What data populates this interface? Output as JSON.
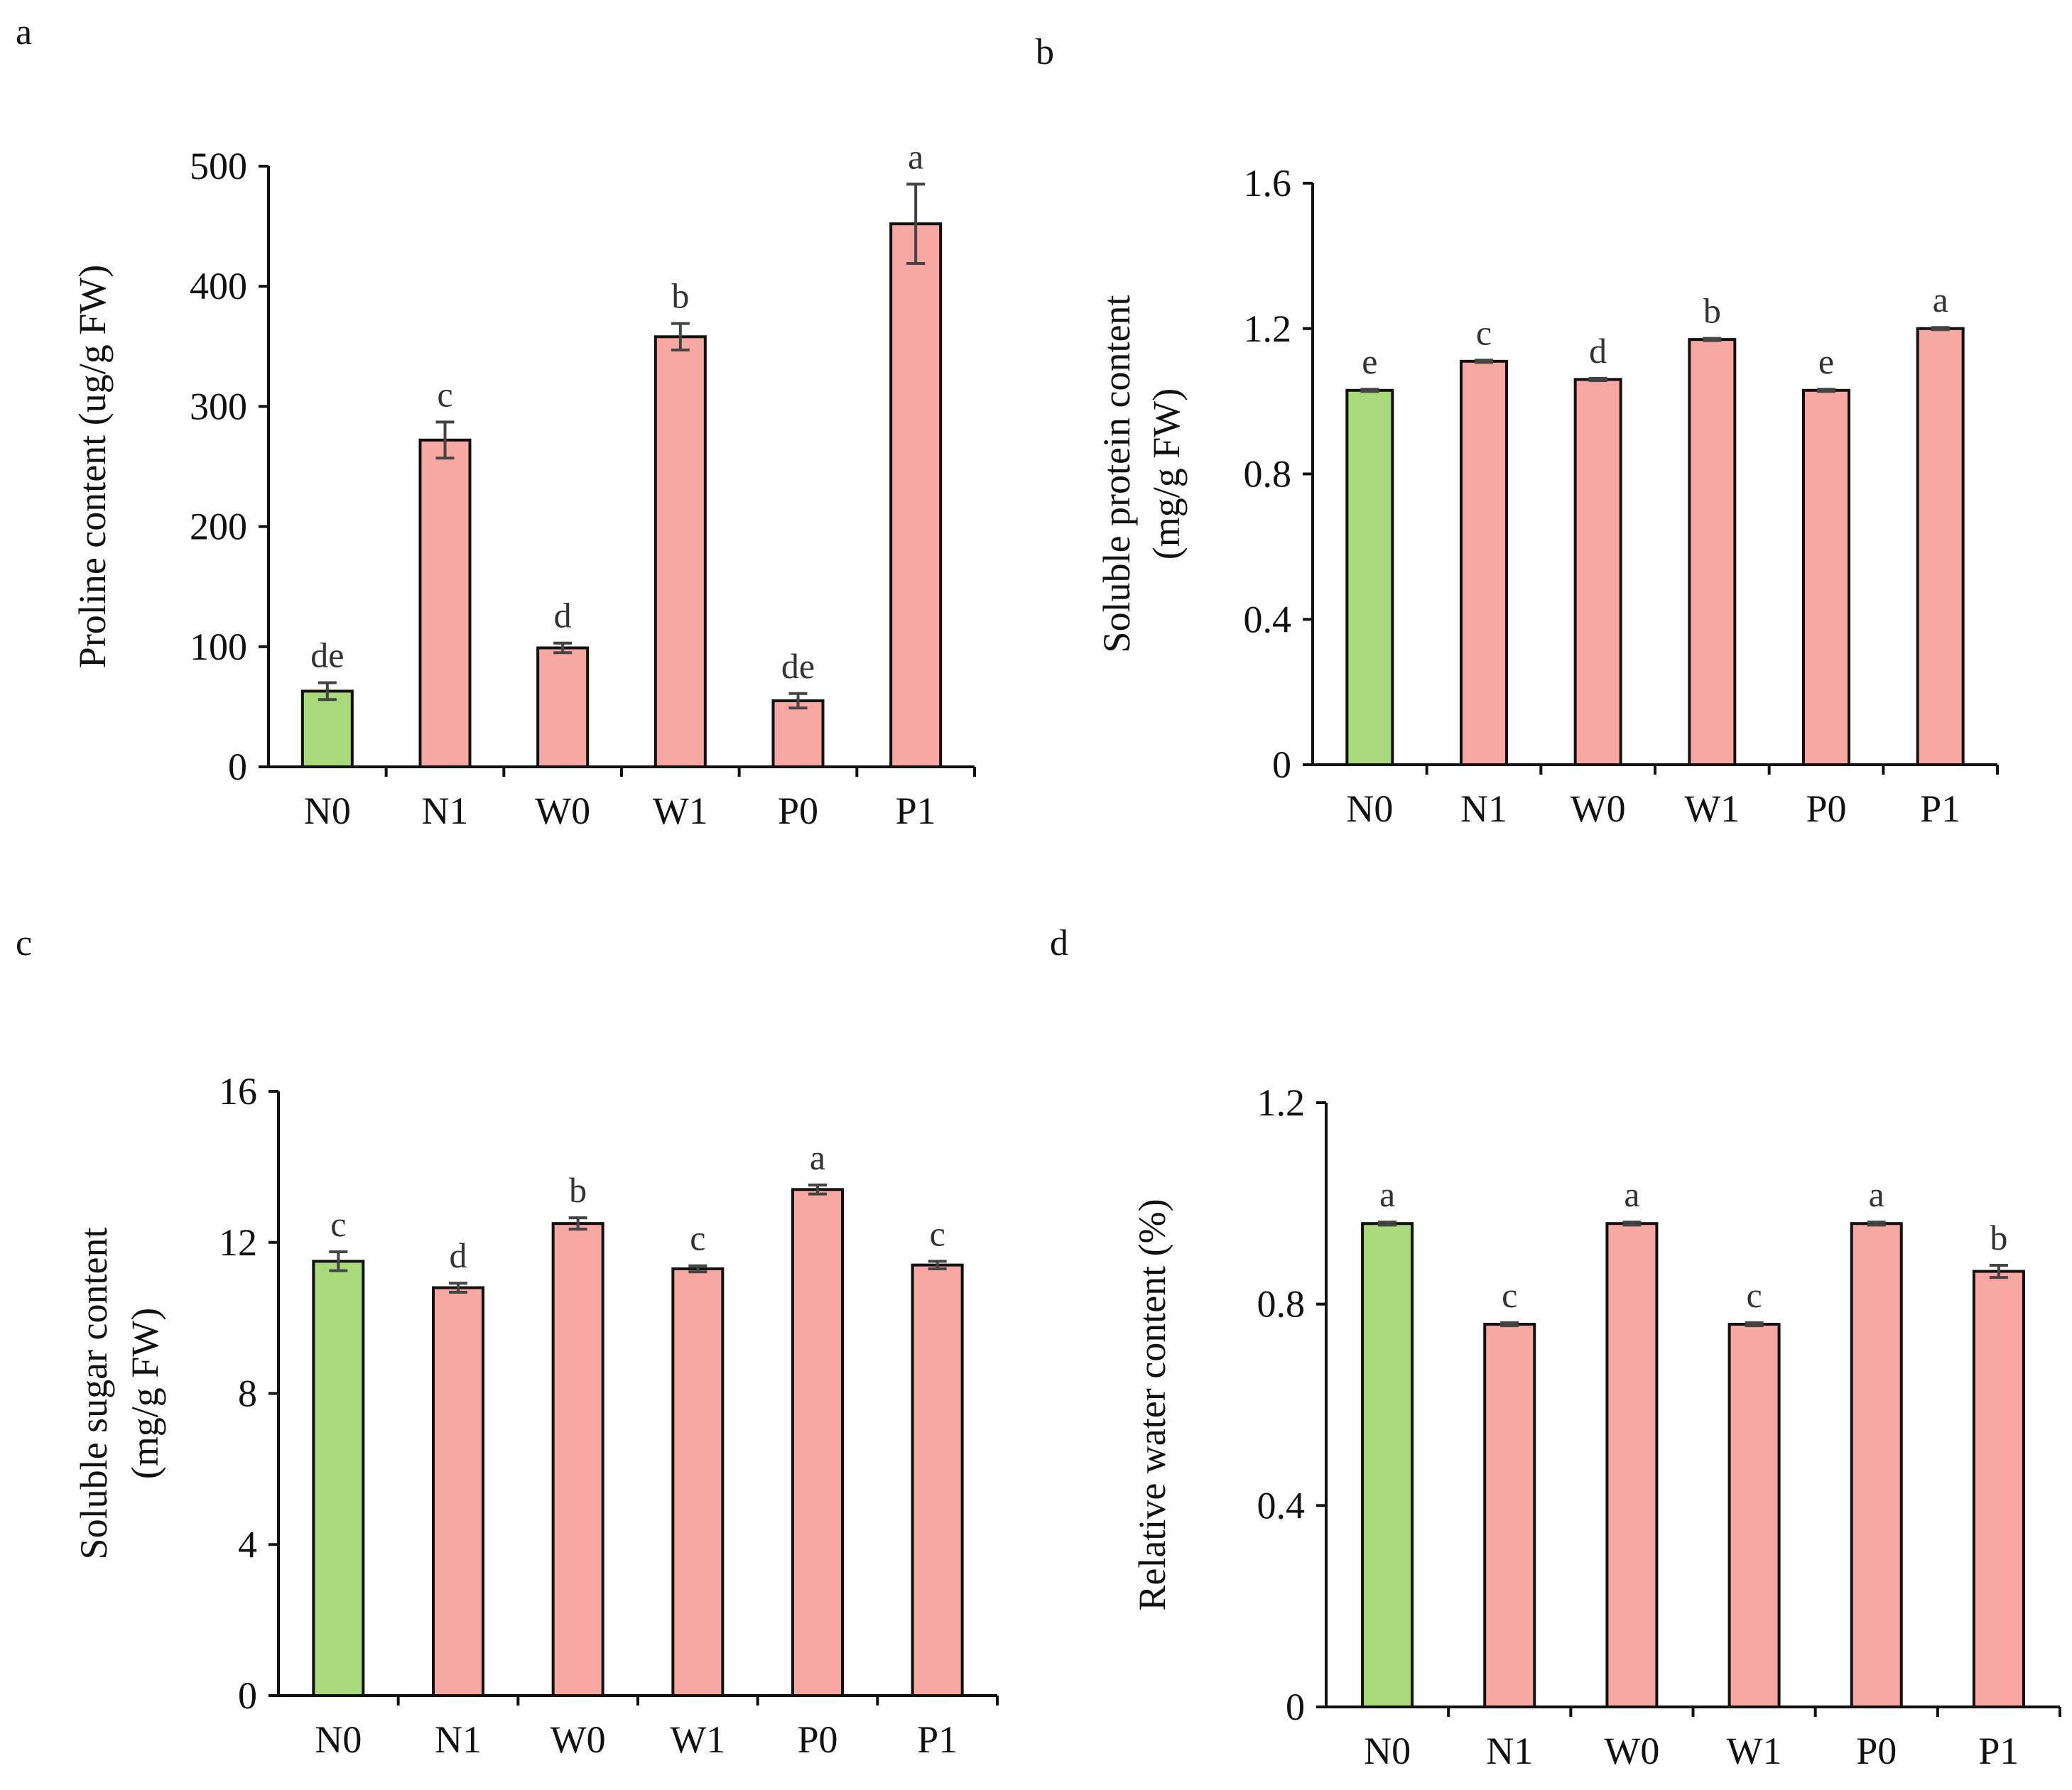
{
  "figure": {
    "bar_colors": {
      "control": "#a8d97a",
      "treatment": "#f7a8a2"
    },
    "error_color": "#444444"
  },
  "chart_data": [
    {
      "panel": "a",
      "type": "bar",
      "title": "",
      "xlabel": "",
      "ylabel_lines": [
        "Proline content (ug/g FW)"
      ],
      "categories": [
        "N0",
        "N1",
        "W0",
        "W1",
        "P0",
        "P1"
      ],
      "values": [
        63,
        272,
        99,
        358,
        55,
        452
      ],
      "errors": [
        7,
        15,
        4,
        11,
        6,
        33
      ],
      "significance": [
        "de",
        "c",
        "d",
        "b",
        "de",
        "a"
      ],
      "ylim": [
        0,
        500
      ],
      "yticks": [
        0,
        100,
        200,
        300,
        400,
        500
      ],
      "ytick_labels": [
        "0",
        "100",
        "200",
        "300",
        "400",
        "500"
      ],
      "colors": [
        "#a8d97a",
        "#f7a8a2",
        "#f7a8a2",
        "#f7a8a2",
        "#f7a8a2",
        "#f7a8a2"
      ],
      "grid": false
    },
    {
      "panel": "b",
      "type": "bar",
      "title": "",
      "xlabel": "",
      "ylabel_lines": [
        "Soluble protein content",
        "(mg/g FW)"
      ],
      "categories": [
        "N0",
        "N1",
        "W0",
        "W1",
        "P0",
        "P1"
      ],
      "values": [
        1.03,
        1.11,
        1.06,
        1.17,
        1.03,
        1.2
      ],
      "errors": [
        0.003,
        0.003,
        0.003,
        0.003,
        0.003,
        0.003
      ],
      "significance": [
        "e",
        "c",
        "d",
        "b",
        "e",
        "a"
      ],
      "ylim": [
        0,
        1.6
      ],
      "yticks": [
        0,
        0.4,
        0.8,
        1.2,
        1.6
      ],
      "ytick_labels": [
        "0",
        "0.4",
        "0.8",
        "1.2",
        "1.6"
      ],
      "colors": [
        "#a8d97a",
        "#f7a8a2",
        "#f7a8a2",
        "#f7a8a2",
        "#f7a8a2",
        "#f7a8a2"
      ],
      "grid": false
    },
    {
      "panel": "c",
      "type": "bar",
      "title": "",
      "xlabel": "",
      "ylabel_lines": [
        "Soluble sugar content",
        "(mg/g FW)"
      ],
      "categories": [
        "N0",
        "N1",
        "W0",
        "W1",
        "P0",
        "P1"
      ],
      "values": [
        11.5,
        10.8,
        12.5,
        11.3,
        13.4,
        11.4
      ],
      "errors": [
        0.25,
        0.12,
        0.15,
        0.08,
        0.12,
        0.1
      ],
      "significance": [
        "c",
        "d",
        "b",
        "c",
        "a",
        "c"
      ],
      "ylim": [
        0,
        16
      ],
      "yticks": [
        0,
        4,
        8,
        12,
        16
      ],
      "ytick_labels": [
        "0",
        "4",
        "8",
        "12",
        "16"
      ],
      "colors": [
        "#a8d97a",
        "#f7a8a2",
        "#f7a8a2",
        "#f7a8a2",
        "#f7a8a2",
        "#f7a8a2"
      ],
      "grid": false
    },
    {
      "panel": "d",
      "type": "bar",
      "title": "",
      "xlabel": "",
      "ylabel_lines": [
        "Relative water content (%)"
      ],
      "categories": [
        "N0",
        "N1",
        "W0",
        "W1",
        "P0",
        "P1"
      ],
      "values": [
        0.96,
        0.76,
        0.96,
        0.76,
        0.96,
        0.865
      ],
      "errors": [
        0.003,
        0.003,
        0.003,
        0.003,
        0.003,
        0.012
      ],
      "significance": [
        "a",
        "c",
        "a",
        "c",
        "a",
        "b"
      ],
      "ylim": [
        0,
        1.2
      ],
      "yticks": [
        0,
        0.4,
        0.8,
        1.2
      ],
      "ytick_labels": [
        "0",
        "0.4",
        "0.8",
        "1.2"
      ],
      "colors": [
        "#a8d97a",
        "#f7a8a2",
        "#f7a8a2",
        "#f7a8a2",
        "#f7a8a2",
        "#f7a8a2"
      ],
      "grid": false
    }
  ]
}
